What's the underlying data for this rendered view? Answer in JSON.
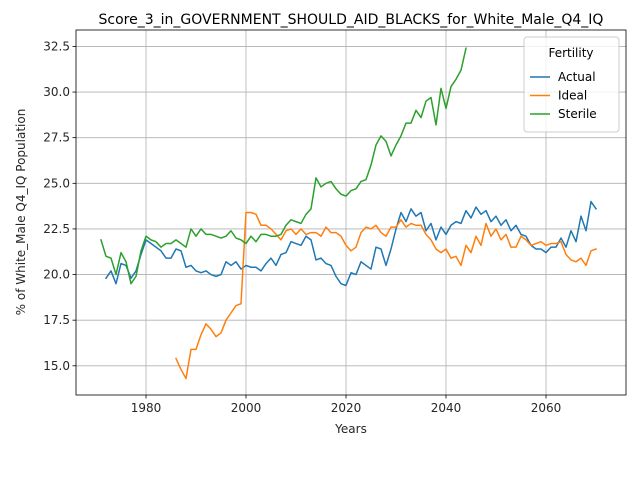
{
  "chart_data": {
    "type": "line",
    "title": "Score_3_in_GOVERNMENT_SHOULD_AID_BLACKS_for_White_Male_Q4_IQ",
    "xlabel": "Years",
    "ylabel": "% of White_Male Q4_IQ Population",
    "xlim": [
      1966,
      2076
    ],
    "ylim": [
      13.4,
      33.4
    ],
    "xticks": [
      1980,
      2000,
      2020,
      2040,
      2060
    ],
    "yticks": [
      15.0,
      17.5,
      20.0,
      22.5,
      25.0,
      27.5,
      30.0,
      32.5
    ],
    "grid": true,
    "legend": {
      "title": "Fertility",
      "placement": "top-right"
    },
    "series": [
      {
        "name": "Actual",
        "color": "#1f77b4",
        "x": [
          1972,
          1973,
          1974,
          1975,
          1976,
          1977,
          1978,
          1979,
          1980,
          1981,
          1982,
          1983,
          1984,
          1985,
          1986,
          1987,
          1988,
          1989,
          1990,
          1991,
          1992,
          1993,
          1994,
          1995,
          1996,
          1997,
          1998,
          1999,
          2000,
          2001,
          2002,
          2003,
          2004,
          2005,
          2006,
          2007,
          2008,
          2009,
          2010,
          2011,
          2012,
          2013,
          2014,
          2015,
          2016,
          2017,
          2018,
          2019,
          2020,
          2021,
          2022,
          2023,
          2024,
          2025,
          2026,
          2027,
          2028,
          2029,
          2030,
          2031,
          2032,
          2033,
          2034,
          2035,
          2036,
          2037,
          2038,
          2039,
          2040,
          2041,
          2042,
          2043,
          2044,
          2045,
          2046,
          2047,
          2048,
          2049,
          2050,
          2051,
          2052,
          2053,
          2054,
          2055,
          2056,
          2057,
          2058,
          2059,
          2060,
          2061,
          2062,
          2063,
          2064,
          2065,
          2066,
          2067,
          2068,
          2069,
          2070
        ],
        "values": [
          19.8,
          20.2,
          19.5,
          20.6,
          20.5,
          19.8,
          20.2,
          21.1,
          21.9,
          21.7,
          21.5,
          21.3,
          20.9,
          20.9,
          21.4,
          21.3,
          20.4,
          20.5,
          20.2,
          20.1,
          20.2,
          20.0,
          19.9,
          20.0,
          20.7,
          20.5,
          20.7,
          20.3,
          20.5,
          20.4,
          20.4,
          20.2,
          20.6,
          20.9,
          20.5,
          21.1,
          21.2,
          21.8,
          21.7,
          21.6,
          22.1,
          21.9,
          20.8,
          20.9,
          20.6,
          20.5,
          19.9,
          19.5,
          19.4,
          20.1,
          20.0,
          20.7,
          20.5,
          20.3,
          21.5,
          21.4,
          20.5,
          21.4,
          22.5,
          23.4,
          22.9,
          23.6,
          23.2,
          23.4,
          22.4,
          22.8,
          21.9,
          22.6,
          22.2,
          22.7,
          22.9,
          22.8,
          23.5,
          23.1,
          23.7,
          23.3,
          23.5,
          22.9,
          23.2,
          22.7,
          23.0,
          22.4,
          22.7,
          22.2,
          22.1,
          21.6,
          21.4,
          21.4,
          21.2,
          21.5,
          21.5,
          22.0,
          21.5,
          22.4,
          21.8,
          23.2,
          22.4,
          24.0,
          23.6
        ]
      },
      {
        "name": "Ideal",
        "color": "#ff7f0e",
        "x": [
          1986,
          1987,
          1988,
          1989,
          1990,
          1991,
          1992,
          1993,
          1994,
          1995,
          1996,
          1997,
          1998,
          1999,
          2000,
          2001,
          2002,
          2003,
          2004,
          2005,
          2006,
          2007,
          2008,
          2009,
          2010,
          2011,
          2012,
          2013,
          2014,
          2015,
          2016,
          2017,
          2018,
          2019,
          2020,
          2021,
          2022,
          2023,
          2024,
          2025,
          2026,
          2027,
          2028,
          2029,
          2030,
          2031,
          2032,
          2033,
          2034,
          2035,
          2036,
          2037,
          2038,
          2039,
          2040,
          2041,
          2042,
          2043,
          2044,
          2045,
          2046,
          2047,
          2048,
          2049,
          2050,
          2051,
          2052,
          2053,
          2054,
          2055,
          2056,
          2057,
          2058,
          2059,
          2060,
          2061,
          2062,
          2063,
          2064,
          2065,
          2066,
          2067,
          2068,
          2069,
          2070
        ],
        "values": [
          15.4,
          14.8,
          14.3,
          15.9,
          15.9,
          16.7,
          17.3,
          17.0,
          16.6,
          16.8,
          17.5,
          17.9,
          18.3,
          18.4,
          23.4,
          23.4,
          23.3,
          22.7,
          22.7,
          22.5,
          22.2,
          21.9,
          22.4,
          22.5,
          22.2,
          22.5,
          22.2,
          22.3,
          22.3,
          22.1,
          22.6,
          22.3,
          22.3,
          22.1,
          21.6,
          21.3,
          21.5,
          22.3,
          22.6,
          22.5,
          22.7,
          22.3,
          22.1,
          22.6,
          22.6,
          23.0,
          22.6,
          22.8,
          22.7,
          22.7,
          22.2,
          21.9,
          21.4,
          21.2,
          21.4,
          20.9,
          21.0,
          20.5,
          21.6,
          21.2,
          22.1,
          21.6,
          22.8,
          22.1,
          22.5,
          21.9,
          22.2,
          21.5,
          21.5,
          22.1,
          21.9,
          21.6,
          21.7,
          21.8,
          21.6,
          21.7,
          21.7,
          21.8,
          21.1,
          20.8,
          20.7,
          20.9,
          20.5,
          21.3,
          21.4
        ]
      },
      {
        "name": "Sterile",
        "color": "#2ca02c",
        "x": [
          1971,
          1972,
          1973,
          1974,
          1975,
          1976,
          1977,
          1978,
          1979,
          1980,
          1981,
          1982,
          1983,
          1984,
          1985,
          1986,
          1987,
          1988,
          1989,
          1990,
          1991,
          1992,
          1993,
          1994,
          1995,
          1996,
          1997,
          1998,
          1999,
          2000,
          2001,
          2002,
          2003,
          2004,
          2005,
          2006,
          2007,
          2008,
          2009,
          2010,
          2011,
          2012,
          2013,
          2014,
          2015,
          2016,
          2017,
          2018,
          2019,
          2020,
          2021,
          2022,
          2023,
          2024,
          2025,
          2026,
          2027,
          2028,
          2029,
          2030,
          2031,
          2032,
          2033,
          2034,
          2035,
          2036,
          2037,
          2038,
          2039,
          2040,
          2041,
          2042,
          2043,
          2044
        ],
        "values": [
          21.9,
          21.0,
          20.9,
          20.0,
          21.2,
          20.7,
          19.5,
          19.9,
          21.3,
          22.1,
          21.9,
          21.8,
          21.5,
          21.7,
          21.7,
          21.9,
          21.7,
          21.5,
          22.5,
          22.1,
          22.5,
          22.2,
          22.2,
          22.1,
          22.0,
          22.1,
          22.4,
          22.0,
          21.9,
          21.7,
          22.1,
          21.8,
          22.2,
          22.2,
          22.1,
          22.1,
          22.2,
          22.7,
          23.0,
          22.9,
          22.8,
          23.3,
          23.6,
          25.3,
          24.8,
          25.0,
          25.1,
          24.7,
          24.4,
          24.3,
          24.6,
          24.7,
          25.1,
          25.2,
          26.0,
          27.1,
          27.6,
          27.3,
          26.5,
          27.1,
          27.6,
          28.3,
          28.3,
          29.0,
          28.6,
          29.5,
          29.7,
          28.2,
          30.2,
          29.1,
          30.3,
          30.7,
          31.2,
          32.4
        ]
      }
    ]
  }
}
